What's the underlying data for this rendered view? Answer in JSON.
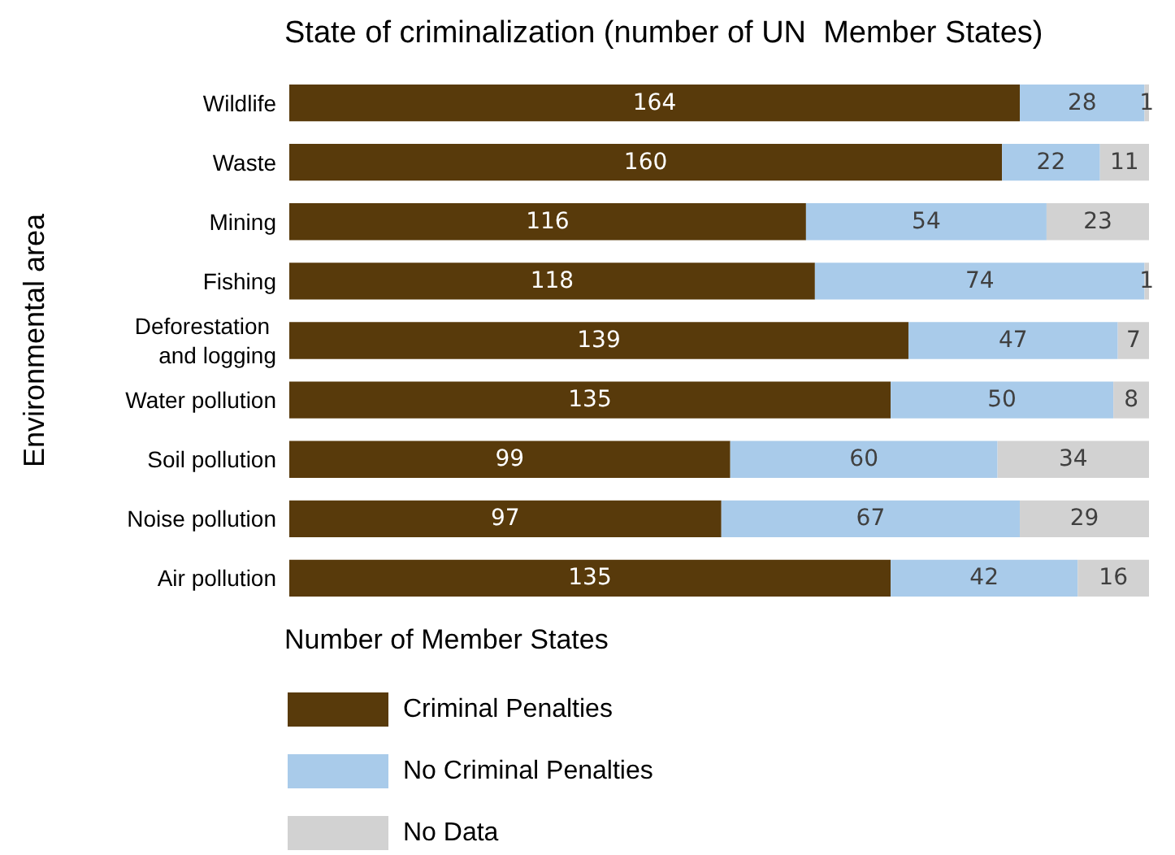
{
  "chart_data": {
    "type": "bar",
    "orientation": "horizontal",
    "stacked": true,
    "title": "State of criminalization (number of UN  Member States)",
    "xlabel": "Number of Member States",
    "ylabel": "Environmental area",
    "categories": [
      "Wildlife",
      "Waste",
      "Mining",
      "Fishing",
      "Deforestation and logging",
      "Water pollution",
      "Soil pollution",
      "Noise pollution",
      "Air pollution"
    ],
    "series": [
      {
        "name": "Criminal Penalties",
        "color": "#583a0b",
        "values": [
          164,
          160,
          116,
          118,
          139,
          135,
          99,
          97,
          135
        ]
      },
      {
        "name": "No Criminal Penalties",
        "color": "#a9cbea",
        "values": [
          28,
          22,
          54,
          74,
          47,
          50,
          60,
          67,
          42
        ]
      },
      {
        "name": "No Data",
        "color": "#d2d2d2",
        "values": [
          1,
          11,
          23,
          1,
          7,
          8,
          34,
          29,
          16
        ]
      }
    ],
    "xlim": [
      0,
      193
    ],
    "tick_labels": "y",
    "data_labels": true,
    "legend": "bottom left"
  }
}
